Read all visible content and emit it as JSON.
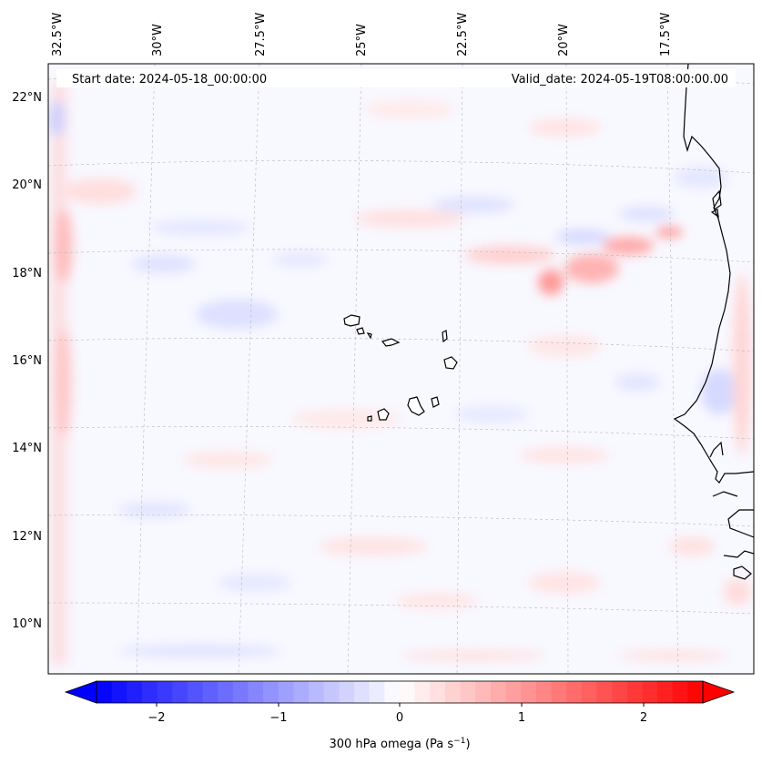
{
  "header": {
    "start_date": "Start date: 2024-05-18_00:00:00",
    "valid_date": "Valid_date: 2024-05-19T08:00:00.00"
  },
  "axes": {
    "lon_labels": [
      "32.5°W",
      "30°W",
      "27.5°W",
      "25°W",
      "22.5°W",
      "20°W",
      "17.5°W"
    ],
    "lat_labels": [
      "22°N",
      "20°N",
      "18°N",
      "16°N",
      "14°N",
      "12°N",
      "10°N"
    ]
  },
  "colorbar": {
    "ticks": [
      "−2",
      "−1",
      "0",
      "1",
      "2"
    ],
    "label": "300 hPa omega (Pa s",
    "label_sup": "−1",
    "label_close": ")",
    "range": [
      -2.6,
      2.6
    ],
    "colormap": "bwr",
    "extend": "both"
  },
  "map": {
    "land_features": [
      "West African coastline",
      "Cape Verde islands"
    ],
    "field": "300 hPa omega",
    "colors": {
      "negative": "#0000ff",
      "zero": "#ffffff",
      "positive": "#ff0000"
    }
  }
}
